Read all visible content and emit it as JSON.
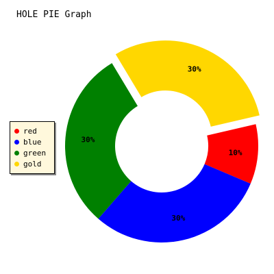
{
  "title": "HOLE PIE Graph",
  "chart_data": {
    "type": "pie",
    "subtype": "donut",
    "title": "HOLE PIE Graph",
    "slices": [
      {
        "label": "red",
        "value": 10,
        "color": "#ff0000",
        "display": "10%",
        "exploded": false
      },
      {
        "label": "blue",
        "value": 30,
        "color": "#0000ff",
        "display": "30%",
        "exploded": false
      },
      {
        "label": "green",
        "value": 30,
        "color": "#008000",
        "display": "30%",
        "exploded": false
      },
      {
        "label": "gold",
        "value": 30,
        "color": "#ffd700",
        "display": "30%",
        "exploded": true
      }
    ],
    "legend_position": "left"
  }
}
